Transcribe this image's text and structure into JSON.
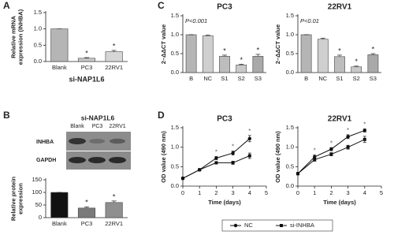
{
  "chart_data": [
    {
      "type": "bar",
      "panel": "A",
      "categories": [
        "Blank",
        "PC3",
        "22RV1"
      ],
      "values": [
        1,
        0.1,
        0.3
      ],
      "errors": [
        0,
        0.02,
        0.04
      ],
      "significance": [
        null,
        "*",
        "*"
      ],
      "colors": [
        "#b5b5b5",
        "#c8c8c8",
        "#d6d6d6"
      ],
      "ylim": [
        0,
        1.5
      ],
      "yticks": [
        {
          "value": 0,
          "label": "0.0"
        },
        0.5,
        {
          "value": 1,
          "label": "1.0"
        },
        1.5
      ],
      "y_label": [
        "Relative mRNA",
        "expression (INHBA)"
      ],
      "x_label": "si-NAP1L6"
    },
    {
      "type": "bar",
      "panel": "B",
      "blot": {
        "title": "si-NAP1L6",
        "lanes": [
          "Blank",
          "PC3",
          "22RV1"
        ],
        "rows": [
          "INHBA",
          "GAPDH"
        ]
      },
      "categories": [
        "Blank",
        "PC3",
        "22RV1"
      ],
      "values": [
        100,
        38,
        60
      ],
      "errors": [
        0,
        5,
        6
      ],
      "significance": [
        null,
        "*",
        "*"
      ],
      "colors": [
        "#111111",
        "#7a7a7a",
        "#8f8f8f"
      ],
      "ylim": [
        0,
        150
      ],
      "yticks": [
        0,
        50,
        100,
        150
      ],
      "y_label": [
        "Relative protein",
        "expression"
      ]
    },
    {
      "type": "bar",
      "panel": "C",
      "title": "PC3",
      "annotation": "P<0.001",
      "categories": [
        "B",
        "NC",
        "S1",
        "S2",
        "S3"
      ],
      "values": [
        1,
        0.97,
        0.43,
        0.2,
        0.43
      ],
      "errors": [
        0,
        0.02,
        0.03,
        0.02,
        0.05
      ],
      "significance": [
        null,
        null,
        "*",
        "*",
        "*"
      ],
      "colors": [
        "#b5b5b5",
        "#cfcfcf",
        "#bdbdbd",
        "#c9c9c9",
        "#a9a9a9"
      ],
      "ylim": [
        0,
        1.5
      ],
      "yticks": [
        {
          "value": 0,
          "label": "0.0"
        },
        0.5,
        {
          "value": 1,
          "label": "1.0"
        },
        1.5
      ],
      "y_label": [
        "2–ΔΔCT value"
      ]
    },
    {
      "type": "bar",
      "title": "22RV1",
      "annotation": "P<0.01",
      "categories": [
        "B",
        "NC",
        "S1",
        "S2",
        "S3"
      ],
      "values": [
        1,
        0.88,
        0.42,
        0.15,
        0.47
      ],
      "errors": [
        0,
        0.03,
        0.04,
        0.02,
        0.03
      ],
      "significance": [
        null,
        null,
        "*",
        "*",
        "*"
      ],
      "colors": [
        "#b5b5b5",
        "#cfcfcf",
        "#bdbdbd",
        "#c9c9c9",
        "#a9a9a9"
      ],
      "ylim": [
        0,
        1.5
      ],
      "yticks": [
        {
          "value": 0,
          "label": "0.0"
        },
        0.5,
        {
          "value": 1,
          "label": "1.0"
        },
        1.5
      ],
      "y_label": [
        "2–ΔΔCT value"
      ]
    },
    {
      "type": "line",
      "panel": "D",
      "title": "PC3",
      "x": [
        0,
        1,
        2,
        3,
        4
      ],
      "series": [
        {
          "color": "#111111",
          "marker": "circle",
          "values": [
            0.2,
            0.42,
            0.72,
            0.85,
            1.22
          ],
          "errors": [
            0.02,
            0.02,
            0.04,
            0.05,
            0.08
          ],
          "significance": [
            null,
            null,
            "*",
            "*",
            "*"
          ]
        },
        {
          "color": "#111111",
          "marker": "square",
          "values": [
            0.2,
            0.42,
            0.6,
            0.6,
            0.78
          ],
          "errors": [
            0.02,
            0.02,
            0.03,
            0.04,
            0.07
          ]
        }
      ],
      "xlim": [
        0,
        5
      ],
      "xticks": [
        0,
        1,
        2,
        3,
        4,
        5
      ],
      "ylim": [
        0,
        1.5
      ],
      "yticks": [
        {
          "value": 0,
          "label": "0.0"
        },
        0.5,
        {
          "value": 1,
          "label": "1.0"
        },
        1.5
      ],
      "x_label": "Time (days)",
      "y_label": [
        "OD value (490 nm)"
      ]
    },
    {
      "type": "line",
      "title": "22RV1",
      "x": [
        0,
        1,
        2,
        3,
        4
      ],
      "series": [
        {
          "name": "NC",
          "color": "#111111",
          "marker": "circle",
          "values": [
            0.32,
            0.75,
            0.95,
            1.27,
            1.43
          ],
          "errors": [
            0.03,
            0.05,
            0.04,
            0.05,
            0.04
          ],
          "significance": [
            null,
            "*",
            "*",
            "*",
            "*"
          ]
        },
        {
          "name": "si-INHBA",
          "color": "#111111",
          "marker": "square",
          "values": [
            0.32,
            0.68,
            0.82,
            1,
            1.2
          ],
          "errors": [
            0.03,
            0.04,
            0.04,
            0.05,
            0.08
          ]
        }
      ],
      "xlim": [
        0,
        5
      ],
      "xticks": [
        0,
        1,
        2,
        3,
        4,
        5
      ],
      "ylim": [
        0,
        1.5
      ],
      "yticks": [
        {
          "value": 0,
          "label": "0.0"
        },
        0.5,
        {
          "value": 1,
          "label": "1.0"
        },
        1.5
      ],
      "x_label": "Time (days)",
      "y_label": [
        "OD value (490 nm)"
      ]
    }
  ]
}
